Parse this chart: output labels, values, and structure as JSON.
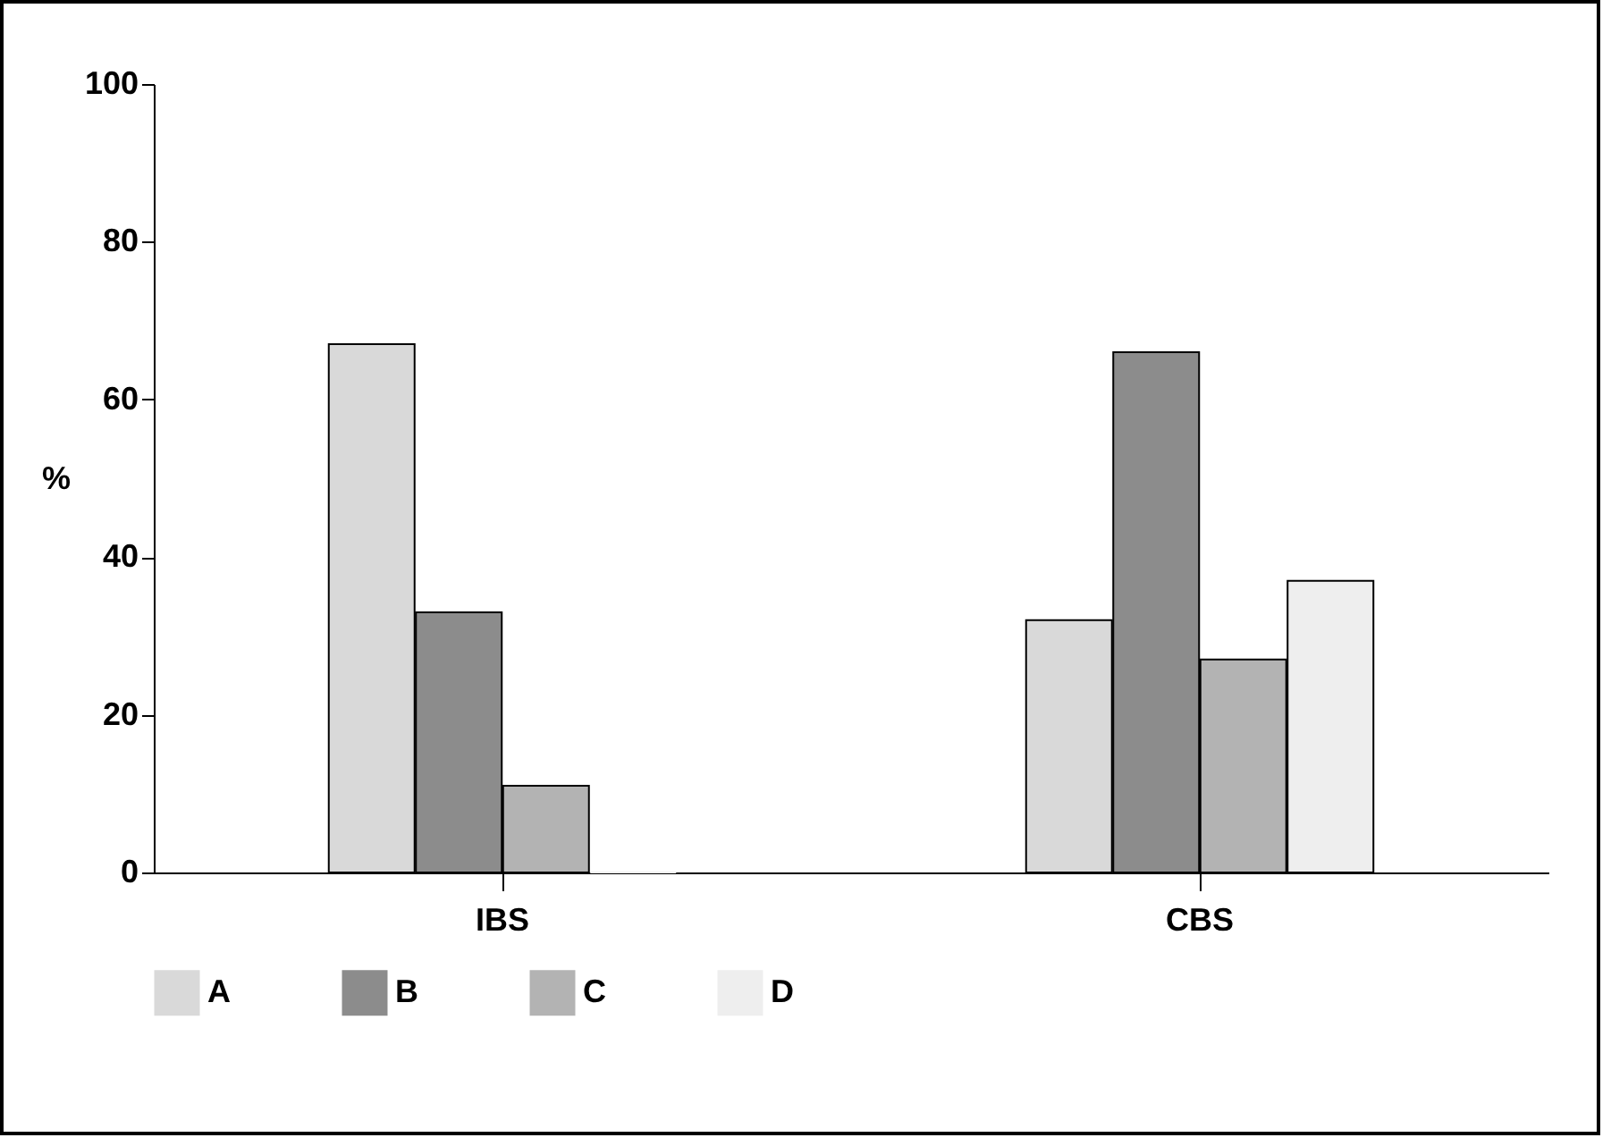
{
  "chart_data": {
    "type": "bar",
    "ylabel": "%",
    "categories": [
      "IBS",
      "CBS"
    ],
    "ylim": [
      0,
      100
    ],
    "yticks": [
      0,
      20,
      40,
      60,
      80,
      100
    ],
    "legend": "bottom",
    "series": [
      {
        "name": "A",
        "color": "#d9d9d9",
        "values": [
          67,
          32
        ]
      },
      {
        "name": "B",
        "color": "#8c8c8c",
        "values": [
          33,
          66
        ]
      },
      {
        "name": "C",
        "color": "#b3b3b3",
        "values": [
          11,
          27
        ]
      },
      {
        "name": "D",
        "color": "#eeeeee",
        "values": [
          0,
          37
        ]
      }
    ]
  }
}
